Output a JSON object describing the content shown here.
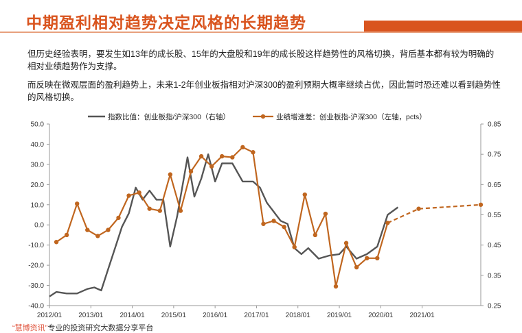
{
  "header": {
    "title": "中期盈利相对趋势决定风格的长期趋势"
  },
  "body": {
    "paragraph1": "但历史经验表明，要发生如13年的成长股、15年的大盘股和19年的成长股这样趋势性的风格切换，背后基本都有较为明确的相对业绩趋势作为支撑。",
    "paragraph2": "而反映在微观层面的盈利趋势上，未来1-2年创业板指相对沪深300的盈利预期大概率继续占优，因此暂时恐还难以看到趋势性的风格切换。"
  },
  "footer": {
    "brand": "“慧博资讯”",
    "text": "专业的投资研究大数据分享平台"
  },
  "colors": {
    "accent": "#D9541E",
    "ratio_line": "#555555",
    "growth_line": "#C0661F"
  },
  "chart_data": {
    "type": "line",
    "x_tick_labels": [
      "2012/01",
      "2013/01",
      "2014/01",
      "2015/01",
      "2016/01",
      "2017/01",
      "2018/01",
      "2019/01",
      "2020/01",
      "2021/01"
    ],
    "x_range": [
      "2012-01",
      "2022-06"
    ],
    "y_left": {
      "ticks": [
        "50.0",
        "40.0",
        "30.0",
        "20.0",
        "10.0",
        "0.0",
        "-10.0",
        "-20.0",
        "-30.0",
        "-40.0"
      ],
      "range": [
        -40,
        50
      ]
    },
    "y_right": {
      "ticks": [
        "0.85",
        "0.75",
        "0.65",
        "0.55",
        "0.45",
        "0.35",
        "0.25"
      ],
      "range": [
        0.25,
        0.85
      ]
    },
    "legend": {
      "position": "top",
      "items": [
        "指数比值：创业板指/沪深300（右轴）",
        "业绩增速差：创业板指-沪深300（左轴，pcts）"
      ]
    },
    "grid": false,
    "series": [
      {
        "name": "指数比值：创业板指/沪深300（右轴）",
        "axis": "right",
        "style": "solid",
        "points": [
          [
            "2012-01",
            0.28
          ],
          [
            "2012-03",
            0.295
          ],
          [
            "2012-06",
            0.29
          ],
          [
            "2012-09",
            0.29
          ],
          [
            "2012-12",
            0.305
          ],
          [
            "2013-02",
            0.31
          ],
          [
            "2013-04",
            0.3
          ],
          [
            "2013-06",
            0.37
          ],
          [
            "2013-08",
            0.44
          ],
          [
            "2013-10",
            0.51
          ],
          [
            "2013-12",
            0.555
          ],
          [
            "2014-02",
            0.64
          ],
          [
            "2014-04",
            0.6
          ],
          [
            "2014-06",
            0.63
          ],
          [
            "2014-08",
            0.6
          ],
          [
            "2014-10",
            0.6
          ],
          [
            "2014-12",
            0.445
          ],
          [
            "2015-02",
            0.545
          ],
          [
            "2015-05",
            0.74
          ],
          [
            "2015-07",
            0.61
          ],
          [
            "2015-09",
            0.67
          ],
          [
            "2015-11",
            0.75
          ],
          [
            "2016-01",
            0.66
          ],
          [
            "2016-03",
            0.72
          ],
          [
            "2016-06",
            0.72
          ],
          [
            "2016-09",
            0.66
          ],
          [
            "2016-12",
            0.66
          ],
          [
            "2017-02",
            0.64
          ],
          [
            "2017-04",
            0.59
          ],
          [
            "2017-06",
            0.56
          ],
          [
            "2017-08",
            0.53
          ],
          [
            "2017-10",
            0.52
          ],
          [
            "2017-12",
            0.44
          ],
          [
            "2018-02",
            0.42
          ],
          [
            "2018-04",
            0.44
          ],
          [
            "2018-07",
            0.405
          ],
          [
            "2018-10",
            0.415
          ],
          [
            "2019-01",
            0.42
          ],
          [
            "2019-03",
            0.445
          ],
          [
            "2019-06",
            0.405
          ],
          [
            "2019-09",
            0.42
          ],
          [
            "2019-12",
            0.445
          ],
          [
            "2020-03",
            0.55
          ],
          [
            "2020-06",
            0.575
          ]
        ]
      },
      {
        "name": "业绩增速差：创业板指-沪深300（左轴，pcts）",
        "axis": "left",
        "style": "solid-markers",
        "points": [
          [
            "2012-03",
            -8.5
          ],
          [
            "2012-06",
            -5.0
          ],
          [
            "2012-09",
            10.5
          ],
          [
            "2012-12",
            -2.5
          ],
          [
            "2013-03",
            -5.5
          ],
          [
            "2013-06",
            -2.5
          ],
          [
            "2013-09",
            3.5
          ],
          [
            "2013-12",
            14.5
          ],
          [
            "2014-03",
            16.0
          ],
          [
            "2014-06",
            8.0
          ],
          [
            "2014-09",
            7.0
          ],
          [
            "2014-12",
            25.0
          ],
          [
            "2015-03",
            7.0
          ],
          [
            "2015-06",
            26.5
          ],
          [
            "2015-09",
            34.0
          ],
          [
            "2015-12",
            29.0
          ],
          [
            "2016-03",
            34.0
          ],
          [
            "2016-06",
            33.5
          ],
          [
            "2016-09",
            38.5
          ],
          [
            "2016-12",
            36.0
          ],
          [
            "2017-03",
            0.5
          ],
          [
            "2017-06",
            2.0
          ],
          [
            "2017-09",
            -1.0
          ],
          [
            "2017-12",
            -11.0
          ],
          [
            "2018-03",
            15.0
          ],
          [
            "2018-06",
            -5.0
          ],
          [
            "2018-09",
            5.5
          ],
          [
            "2018-12",
            -30.5
          ],
          [
            "2019-03",
            -9.0
          ],
          [
            "2019-06",
            -21.0
          ],
          [
            "2019-09",
            -16.5
          ],
          [
            "2019-12",
            -16.5
          ],
          [
            "2020-03",
            1.0
          ]
        ]
      },
      {
        "name": "业绩增速差：创业板指-沪深300（左轴，pcts）",
        "axis": "left",
        "style": "dashed-forecast",
        "points": [
          [
            "2020-03",
            1.0
          ],
          [
            "2020-12",
            8.0
          ],
          [
            "2022-06",
            10.0
          ]
        ]
      }
    ]
  }
}
